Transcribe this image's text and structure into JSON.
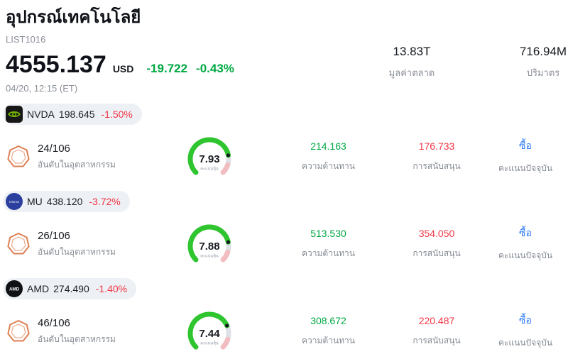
{
  "header": {
    "title": "อุปกรณ์เทคโนโลยี",
    "list_id": "LIST1016",
    "price": "4555.137",
    "currency": "USD",
    "change_abs": "-19.722",
    "change_pct": "-0.43%",
    "datetime": "04/20, 12:15 (ET)",
    "market_cap": {
      "value": "13.83T",
      "label": "มูลค่าตลาด"
    },
    "volume": {
      "value": "716.94M",
      "label": "ปริมาตร"
    }
  },
  "labels": {
    "industry_rank": "อันดับในอุตสาหกรรม",
    "stock_score": "คะแนนหุ้น",
    "resistance": "ความต้านทาน",
    "support": "การสนับสนุน",
    "current_score": "คะแนนปัจจุบัน"
  },
  "colors": {
    "up_green": "#00A843",
    "down_red": "#F23645",
    "link_blue": "#2E7CF6",
    "gauge_green": "#2FC52F",
    "gauge_track": "#DEE1E6",
    "gauge_tip_red": "#F2BDC1",
    "badge_orange": "#DD7F52"
  },
  "stocks": [
    {
      "ticker": "NVDA",
      "price": "198.645",
      "change": "-1.50%",
      "rank": "24/106",
      "score": "7.93",
      "resistance": "214.163",
      "support": "176.733",
      "signal": "ซื้อ",
      "logo": "nvda"
    },
    {
      "ticker": "MU",
      "price": "438.120",
      "change": "-3.72%",
      "rank": "26/106",
      "score": "7.88",
      "resistance": "513.530",
      "support": "354.050",
      "signal": "ซื้อ",
      "logo": "mu"
    },
    {
      "ticker": "AMD",
      "price": "274.490",
      "change": "-1.40%",
      "rank": "46/106",
      "score": "7.44",
      "resistance": "308.672",
      "support": "220.487",
      "signal": "ซื้อ",
      "logo": "amd"
    }
  ]
}
